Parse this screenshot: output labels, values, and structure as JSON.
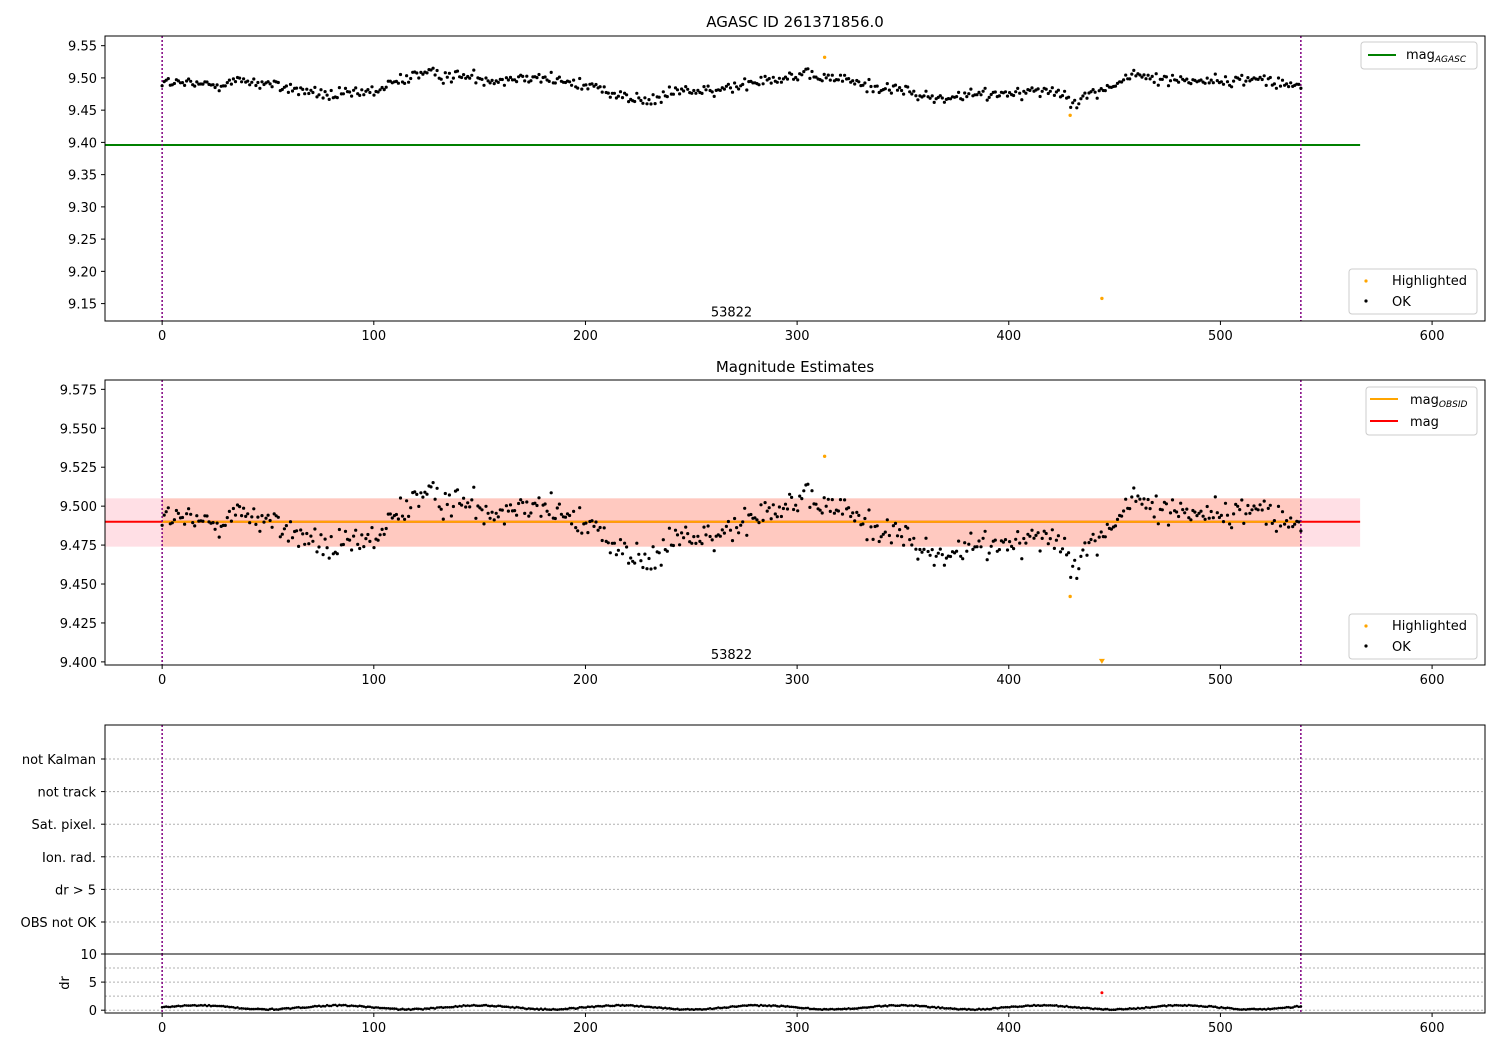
{
  "chart_data": [
    {
      "type": "scatter",
      "title": "AGASC ID 261371856.0",
      "xlabel": "",
      "ylabel": "",
      "xlim": [
        -27,
        625
      ],
      "ylim": [
        9.123,
        9.565
      ],
      "xticks": [
        0,
        100,
        200,
        300,
        400,
        500,
        600
      ],
      "yticks": [
        9.15,
        9.2,
        9.25,
        9.3,
        9.35,
        9.4,
        9.45,
        9.5,
        9.55
      ],
      "ytick_decimals": 2,
      "grid": false,
      "vlines": [
        0,
        538
      ],
      "hlines": [
        {
          "name": "mag_AGASC",
          "y": 9.396,
          "x": [
            -27,
            566
          ],
          "color": "#008000"
        }
      ],
      "annotation": {
        "text": "53822",
        "x": 269,
        "y": 9.138
      },
      "series": [
        {
          "name": "Highlighted",
          "color": "#ffa500",
          "points": [
            [
              313,
              9.532
            ],
            [
              429,
              9.442
            ],
            [
              444,
              9.158
            ]
          ]
        },
        {
          "name": "OK",
          "color": "#000000",
          "trend": [
            [
              0,
              9.493
            ],
            [
              20,
              9.489
            ],
            [
              40,
              9.496
            ],
            [
              60,
              9.484
            ],
            [
              80,
              9.472
            ],
            [
              100,
              9.478
            ],
            [
              120,
              9.507
            ],
            [
              140,
              9.503
            ],
            [
              160,
              9.497
            ],
            [
              175,
              9.504
            ],
            [
              190,
              9.493
            ],
            [
              205,
              9.486
            ],
            [
              220,
              9.47
            ],
            [
              230,
              9.462
            ],
            [
              245,
              9.482
            ],
            [
              260,
              9.477
            ],
            [
              280,
              9.497
            ],
            [
              300,
              9.503
            ],
            [
              320,
              9.499
            ],
            [
              335,
              9.487
            ],
            [
              350,
              9.481
            ],
            [
              365,
              9.467
            ],
            [
              380,
              9.472
            ],
            [
              400,
              9.478
            ],
            [
              420,
              9.482
            ],
            [
              432,
              9.465
            ],
            [
              445,
              9.482
            ],
            [
              460,
              9.505
            ],
            [
              470,
              9.498
            ],
            [
              490,
              9.497
            ],
            [
              505,
              9.494
            ],
            [
              520,
              9.5
            ],
            [
              538,
              9.486
            ]
          ],
          "n": 560,
          "x_range": [
            0,
            538
          ],
          "spread": 0.018
        }
      ],
      "legend": [
        {
          "label": "mag",
          "sub": "AGASC",
          "kind": "line",
          "color": "#008000",
          "position": "top-right"
        },
        {
          "label": "Highlighted",
          "kind": "marker",
          "color": "#ffa500",
          "position": "bottom-right"
        },
        {
          "label": "OK",
          "kind": "marker",
          "color": "#000000",
          "position": "bottom-right"
        }
      ]
    },
    {
      "type": "scatter",
      "title": "Magnitude Estimates",
      "xlabel": "",
      "ylabel": "",
      "xlim": [
        -27,
        625
      ],
      "ylim": [
        9.398,
        9.581
      ],
      "xticks": [
        0,
        100,
        200,
        300,
        400,
        500,
        600
      ],
      "yticks": [
        9.4,
        9.425,
        9.45,
        9.475,
        9.5,
        9.525,
        9.55,
        9.575
      ],
      "ytick_decimals": 3,
      "grid": false,
      "vlines": [
        0,
        538
      ],
      "bands": [
        {
          "y": [
            9.474,
            9.505
          ],
          "x": [
            -27,
            566
          ],
          "color": "#ffc0cb",
          "opacity": 0.5
        },
        {
          "y": [
            9.474,
            9.505
          ],
          "x": [
            0,
            538
          ],
          "color": "#ffa07a",
          "opacity": 0.35
        }
      ],
      "hlines": [
        {
          "name": "mag",
          "y": 9.49,
          "x": [
            -27,
            566
          ],
          "color": "#ff0000"
        },
        {
          "name": "mag_OBSID",
          "y": 9.49,
          "x": [
            0,
            538
          ],
          "color": "#ffa500"
        }
      ],
      "annotation": {
        "text": "53822",
        "x": 269,
        "y": 9.405
      },
      "series": [
        {
          "name": "Highlighted",
          "color": "#ffa500",
          "points": [
            [
              313,
              9.532
            ],
            [
              429,
              9.442
            ]
          ],
          "offscale": [
            [
              444,
              9.4
            ]
          ]
        },
        {
          "name": "OK",
          "color": "#000000",
          "trend": [
            [
              0,
              9.493
            ],
            [
              20,
              9.489
            ],
            [
              40,
              9.496
            ],
            [
              60,
              9.484
            ],
            [
              80,
              9.472
            ],
            [
              100,
              9.478
            ],
            [
              120,
              9.507
            ],
            [
              140,
              9.503
            ],
            [
              160,
              9.497
            ],
            [
              175,
              9.504
            ],
            [
              190,
              9.493
            ],
            [
              205,
              9.486
            ],
            [
              220,
              9.47
            ],
            [
              230,
              9.462
            ],
            [
              245,
              9.482
            ],
            [
              260,
              9.477
            ],
            [
              280,
              9.497
            ],
            [
              300,
              9.503
            ],
            [
              320,
              9.499
            ],
            [
              335,
              9.487
            ],
            [
              350,
              9.481
            ],
            [
              365,
              9.467
            ],
            [
              380,
              9.472
            ],
            [
              400,
              9.478
            ],
            [
              420,
              9.482
            ],
            [
              432,
              9.465
            ],
            [
              445,
              9.482
            ],
            [
              460,
              9.505
            ],
            [
              470,
              9.498
            ],
            [
              490,
              9.497
            ],
            [
              505,
              9.494
            ],
            [
              520,
              9.5
            ],
            [
              538,
              9.486
            ]
          ],
          "n": 560,
          "x_range": [
            0,
            538
          ],
          "spread": 0.018
        }
      ],
      "legend": [
        {
          "label": "mag",
          "sub": "OBSID",
          "kind": "line",
          "color": "#ffa500",
          "position": "top-right"
        },
        {
          "label": "mag",
          "kind": "line",
          "color": "#ff0000",
          "position": "top-right"
        },
        {
          "label": "Highlighted",
          "kind": "marker",
          "color": "#ffa500",
          "position": "bottom-right"
        },
        {
          "label": "OK",
          "kind": "marker",
          "color": "#000000",
          "position": "bottom-right"
        }
      ]
    },
    {
      "type": "table",
      "title": "",
      "xlim": [
        -27,
        625
      ],
      "rows": [
        "not Kalman",
        "not track",
        "Sat. pixel.",
        "Ion. rad.",
        "dr > 5",
        "OBS not OK"
      ],
      "grid": "horizontal-dotted",
      "vlines": [
        0,
        538
      ]
    },
    {
      "type": "scatter",
      "title": "",
      "xlabel": "",
      "ylabel": "dr",
      "xlim": [
        -27,
        625
      ],
      "ylim": [
        -0.5,
        10
      ],
      "xticks": [
        0,
        100,
        200,
        300,
        400,
        500,
        600
      ],
      "yticks": [
        0,
        5,
        10
      ],
      "ytick_decimals": 0,
      "grid": "horizontal-dotted",
      "vlines": [
        0,
        538
      ],
      "series": [
        {
          "name": "dr",
          "color": "#000000",
          "n": 560,
          "x_range": [
            0,
            538
          ],
          "trend": [
            [
              0,
              0.5
            ],
            [
              538,
              0.5
            ]
          ],
          "spread": 0.35
        },
        {
          "name": "flagged",
          "color": "#ff0000",
          "points": [
            [
              444,
              3.1
            ]
          ]
        }
      ]
    }
  ]
}
